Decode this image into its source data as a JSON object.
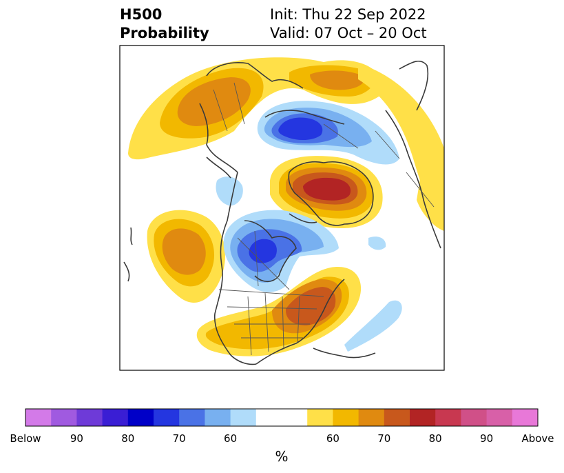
{
  "title": {
    "left_line1": "H500",
    "left_line2": "Probability",
    "right_line1": "Init: Thu 22 Sep 2022",
    "right_line2": "Valid: 07 Oct – 20 Oct"
  },
  "colorbar": {
    "unit": "%",
    "tick_labels": [
      "Below",
      "90",
      "80",
      "70",
      "60",
      "60",
      "70",
      "80",
      "90",
      "Above"
    ],
    "colors": [
      "#d37ae8",
      "#a05ae0",
      "#6e3ad8",
      "#3a1ed4",
      "#0000c8",
      "#2436e0",
      "#4a72e6",
      "#78b0f0",
      "#b0dcfa",
      "#ffffff",
      "#ffffff",
      "#ffe048",
      "#f2b800",
      "#e08a10",
      "#c8581c",
      "#b22424",
      "#c83850",
      "#d05088",
      "#d860a8",
      "#e878d8"
    ]
  },
  "map": {
    "legend_colors": {
      "above_60": "#ffe048",
      "above_65": "#f2b800",
      "above_70": "#e08a10",
      "above_75": "#c8581c",
      "above_80": "#b22424",
      "below_60": "#b0dcfa",
      "below_65": "#78b0f0",
      "below_70": "#4a72e6",
      "below_75": "#2436e0"
    }
  }
}
